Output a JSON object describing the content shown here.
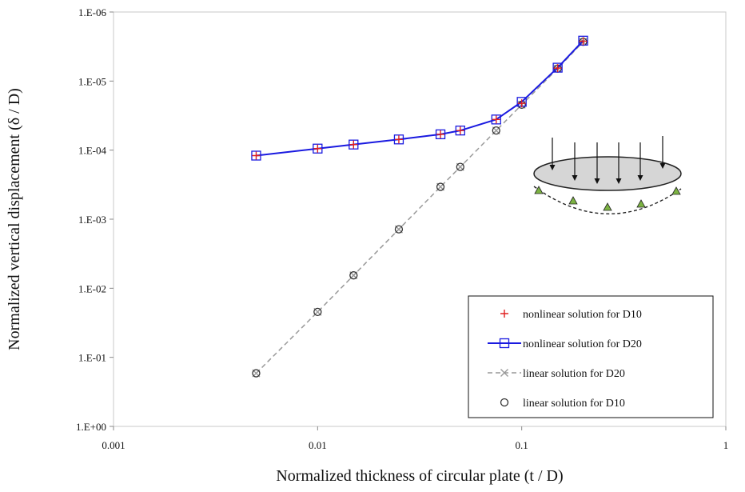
{
  "chart_data": {
    "type": "line",
    "title": "",
    "xlabel": "Normalized thickness of circular plate (t / D)",
    "ylabel": "Normalized vertical displacement (δ / D)",
    "xscale": "log",
    "yscale": "log",
    "y_inverted": true,
    "xlim": [
      0.001,
      1
    ],
    "ylim": [
      1e-06,
      1
    ],
    "x_ticks": [
      "0.001",
      "0.01",
      "0.1",
      "1"
    ],
    "y_ticks": [
      "1.E-06",
      "1.E-05",
      "1.E-04",
      "1.E-03",
      "1.E-02",
      "1.E-01",
      "1.E+00"
    ],
    "grid": false,
    "legend_position": "bottom-right",
    "series": [
      {
        "name": "nonlinear solution for D10",
        "marker": "plus",
        "line": "none",
        "color": "#e02020",
        "x": [
          0.005,
          0.01,
          0.015,
          0.025,
          0.04,
          0.05,
          0.075,
          0.1,
          0.15,
          0.2
        ],
        "y": [
          0.00012,
          9.5e-05,
          8.3e-05,
          7e-05,
          5.9e-05,
          5.2e-05,
          3.6e-05,
          2.1e-05,
          6.5e-06,
          2.65e-06
        ]
      },
      {
        "name": "nonlinear solution for D20",
        "marker": "square",
        "line": "solid",
        "color": "#1a1ae0",
        "x": [
          0.005,
          0.01,
          0.015,
          0.025,
          0.04,
          0.05,
          0.075,
          0.1,
          0.15,
          0.2
        ],
        "y": [
          0.00012,
          9.5e-05,
          8.3e-05,
          7e-05,
          5.9e-05,
          5.2e-05,
          3.6e-05,
          2e-05,
          6.4e-06,
          2.6e-06
        ]
      },
      {
        "name": "linear solution for D20",
        "marker": "x",
        "line": "dashed",
        "color": "#999999",
        "x": [
          0.005,
          0.01,
          0.015,
          0.025,
          0.04,
          0.05,
          0.075,
          0.1,
          0.15,
          0.2
        ],
        "y": [
          0.17,
          0.022,
          0.0065,
          0.0014,
          0.00034,
          0.000175,
          5.2e-05,
          2.2e-05,
          6.6e-06,
          2.7e-06
        ]
      },
      {
        "name": "linear solution for D10",
        "marker": "circle",
        "line": "none",
        "color": "#333333",
        "x": [
          0.005,
          0.01,
          0.015,
          0.025,
          0.04,
          0.05,
          0.075,
          0.1,
          0.15,
          0.2
        ],
        "y": [
          0.17,
          0.022,
          0.0065,
          0.0014,
          0.00034,
          0.000175,
          5.2e-05,
          2.2e-05,
          6.6e-06,
          2.7e-06
        ]
      }
    ]
  }
}
